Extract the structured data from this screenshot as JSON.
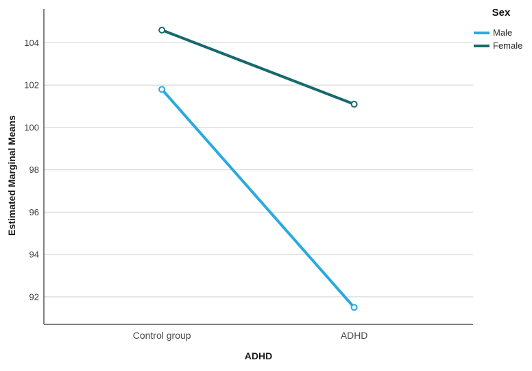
{
  "chart_data": {
    "type": "line",
    "title": "",
    "categories": [
      "Control group",
      "ADHD"
    ],
    "series": [
      {
        "name": "Male",
        "color": "#29a9e1",
        "values": [
          101.8,
          91.5
        ]
      },
      {
        "name": "Female",
        "color": "#17696d",
        "values": [
          104.6,
          101.1
        ]
      }
    ],
    "xlabel": "ADHD",
    "ylabel": "Estimated Marginal Means",
    "ylim": [
      90.7,
      105.6
    ],
    "yticks": [
      92,
      94,
      96,
      98,
      100,
      102,
      104
    ],
    "legend_title": "Sex",
    "legend_position": "top-right",
    "grid": "horizontal-only",
    "marker": "open-circle",
    "line_width": 4,
    "colors": {
      "gridline": "#d9d9d9",
      "axis": "#555555",
      "tick_label": "#3f3f3f",
      "background": "#ffffff"
    }
  }
}
